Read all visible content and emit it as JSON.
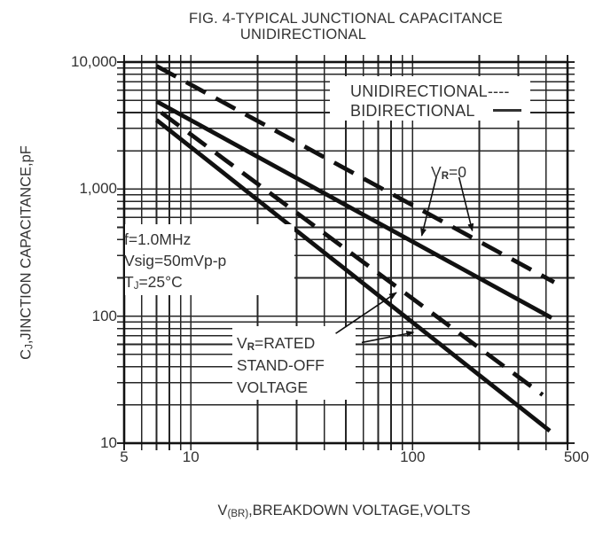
{
  "colors": {
    "ink": "#111111",
    "grid": "#262626",
    "text": "#333333",
    "bg": "#ffffff"
  },
  "figure": {
    "title_line1": "FIG. 4-TYPICAL JUNCTIONAL CAPACITANCE",
    "title_line2": "UNIDIRECTIONAL"
  },
  "axes": {
    "x": {
      "scale": "log",
      "label_prefix": "V",
      "label_sub": "(BR)",
      "label_rest": ",BREAKDOWN VOLTAGE,VOLTS",
      "tick_values": [
        5,
        10,
        100,
        500
      ],
      "tick_labels": [
        "5",
        "10",
        "100",
        "500"
      ],
      "label_dx": [
        0,
        0,
        0,
        10
      ]
    },
    "y": {
      "scale": "log",
      "label_prefix": "C",
      "label_sub": "J",
      "label_rest": ",JINCTION CAPACITANCE,pF",
      "tick_values": [
        10,
        100,
        1000,
        10000
      ],
      "tick_labels": [
        "10",
        "100",
        "1,000",
        "10,000"
      ]
    }
  },
  "legend": {
    "entries": [
      {
        "label": "UNIDIRECTIONAL",
        "dash_text": "----",
        "style": "dashed"
      },
      {
        "label": "BIDIRECTIONAL",
        "style": "solid"
      }
    ]
  },
  "conditions": {
    "line1": "f=1.0MHz",
    "line2": "Vsig=50mVp-p",
    "line3_prefix": "T",
    "line3_sub": "J",
    "line3_rest": "=25°C"
  },
  "annotations": {
    "vr0": {
      "prefix": "V",
      "sub": "R",
      "rest": "=0"
    },
    "vr_rated": {
      "prefix": "V",
      "sub": "R",
      "rest": "=RATED",
      "line2": "STAND-OFF",
      "line3": "VOLTAGE"
    }
  },
  "chart_data": {
    "type": "line",
    "title": "FIG. 4-TYPICAL JUNCTIONAL CAPACITANCE UNIDIRECTIONAL",
    "xlabel": "V(BR), BREAKDOWN VOLTAGE, VOLTS",
    "ylabel": "CJ, JUNCTION CAPACITANCE, pF",
    "x_scale": "log",
    "y_scale": "log",
    "xlim": [
      5,
      500
    ],
    "ylim": [
      10,
      10000
    ],
    "grid": true,
    "legend_position": "inside-top-right",
    "conditions": "f=1.0MHz, Vsig=50mVp-p, TJ=25degC",
    "series": [
      {
        "name": "Unidirectional, VR=0",
        "style": "dashed",
        "points": [
          [
            7.0,
            9300
          ],
          [
            435,
            185
          ]
        ]
      },
      {
        "name": "Bidirectional, VR=0",
        "style": "solid",
        "points": [
          [
            7.0,
            4900
          ],
          [
            424,
            97
          ]
        ]
      },
      {
        "name": "Unidirectional, VR=rated stand-off voltage",
        "style": "dashed",
        "points": [
          [
            7.35,
            4000
          ],
          [
            386,
            24
          ]
        ]
      },
      {
        "name": "Bidirectional, VR=rated stand-off voltage",
        "style": "solid",
        "points": [
          [
            7.0,
            3500
          ],
          [
            416,
            12.5
          ]
        ]
      }
    ],
    "arrows": [
      {
        "label": "VR=0 to bidirectional curve",
        "from": [
          128,
          1240
        ],
        "to": [
          110,
          430
        ]
      },
      {
        "label": "VR=0 to unidirectional curve",
        "from": [
          162,
          1240
        ],
        "to": [
          186,
          470
        ]
      },
      {
        "label": "VR=RATED to unidirectional curve",
        "from": [
          45,
          73
        ],
        "to": [
          84.5,
          153
        ]
      },
      {
        "label": "VR=RATED to bidirectional curve",
        "from": [
          59,
          62
        ],
        "to": [
          101,
          74.5
        ]
      }
    ]
  }
}
